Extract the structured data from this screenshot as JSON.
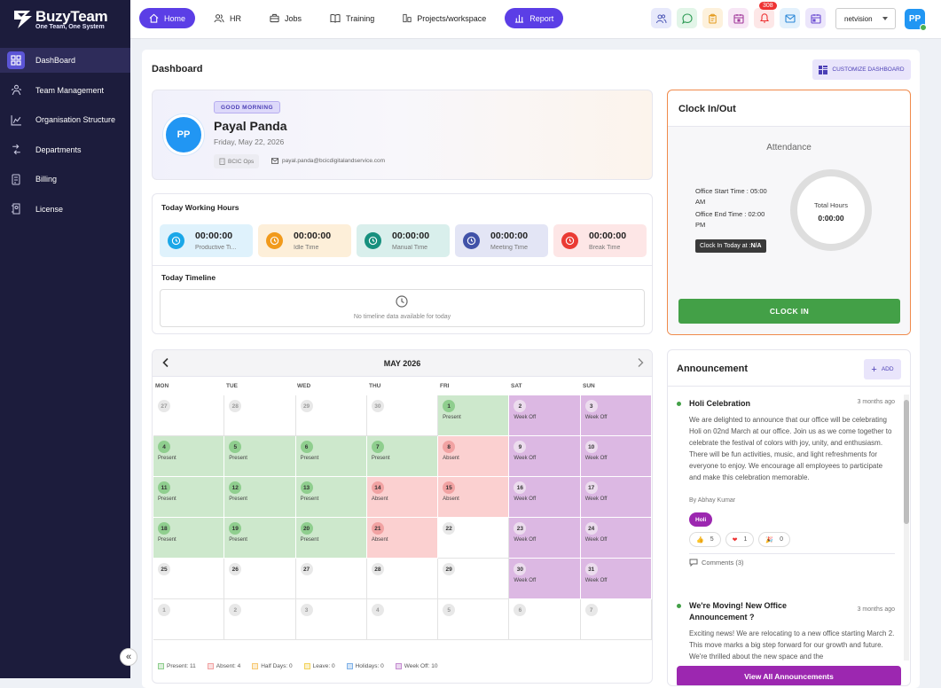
{
  "brand": {
    "name": "BuzyTeam",
    "tagline": "One Team, One System"
  },
  "sidebar": {
    "items": [
      {
        "label": "DashBoard",
        "icon": "dashboard-icon"
      },
      {
        "label": "Team Management",
        "icon": "team-icon"
      },
      {
        "label": "Organisation Structure",
        "icon": "org-chart-icon"
      },
      {
        "label": "Departments",
        "icon": "departments-icon"
      },
      {
        "label": "Billing",
        "icon": "billing-icon"
      },
      {
        "label": "License",
        "icon": "license-icon"
      }
    ],
    "collapse_glyph": "«"
  },
  "topnav": {
    "items": [
      {
        "label": "Home",
        "icon": "home-icon"
      },
      {
        "label": "HR",
        "icon": "hr-icon"
      },
      {
        "label": "Jobs",
        "icon": "jobs-icon"
      },
      {
        "label": "Training",
        "icon": "training-icon"
      },
      {
        "label": "Projects/workspace",
        "icon": "projects-icon"
      },
      {
        "label": "Report",
        "icon": "report-icon"
      }
    ],
    "notification_count": "308",
    "org_select": "netvision",
    "user_initials": "PP"
  },
  "dashboard": {
    "title": "Dashboard",
    "customize_label": "CUSTOMIZE DASHBOARD"
  },
  "profile": {
    "greeting": "GOOD MORNING",
    "name": "Payal Panda",
    "initials": "PP",
    "date": "Friday, May 22, 2026",
    "department": "BCIC Ops",
    "email": "payal.panda@bcicdigitalandservice.com"
  },
  "working_hours": {
    "title": "Today Working Hours",
    "cards": [
      {
        "value": "00:00:00",
        "label": "Productive Ti...",
        "bg": "#dff2fc",
        "icon_bg": "#1aa7e8"
      },
      {
        "value": "00:00:00",
        "label": "Idle Time",
        "bg": "#fdefd9",
        "icon_bg": "#f19a1b"
      },
      {
        "value": "00:00:00",
        "label": "Manual Time",
        "bg": "#d9efec",
        "icon_bg": "#17907e"
      },
      {
        "value": "00:00:00",
        "label": "Meeting Time",
        "bg": "#e3e5f5",
        "icon_bg": "#4152a8"
      },
      {
        "value": "00:00:00",
        "label": "Break Time",
        "bg": "#fde6e6",
        "icon_bg": "#ea3b34"
      }
    ]
  },
  "timeline": {
    "title": "Today Timeline",
    "empty_text": "No timeline data available for today"
  },
  "calendar": {
    "month": "MAY 2026",
    "days_of_week": [
      "MON",
      "TUE",
      "WED",
      "THU",
      "FRI",
      "SAT",
      "SUN"
    ],
    "weeks": [
      [
        {
          "d": "27",
          "s": "",
          "t": "faded"
        },
        {
          "d": "28",
          "s": "",
          "t": "faded"
        },
        {
          "d": "29",
          "s": "",
          "t": "faded"
        },
        {
          "d": "30",
          "s": "",
          "t": "faded"
        },
        {
          "d": "1",
          "s": "Present",
          "t": "present"
        },
        {
          "d": "2",
          "s": "Week Off",
          "t": "weekoff"
        },
        {
          "d": "3",
          "s": "Week Off",
          "t": "weekoff"
        }
      ],
      [
        {
          "d": "4",
          "s": "Present",
          "t": "present"
        },
        {
          "d": "5",
          "s": "Present",
          "t": "present"
        },
        {
          "d": "6",
          "s": "Present",
          "t": "present"
        },
        {
          "d": "7",
          "s": "Present",
          "t": "present"
        },
        {
          "d": "8",
          "s": "Absent",
          "t": "absent"
        },
        {
          "d": "9",
          "s": "Week Off",
          "t": "weekoff"
        },
        {
          "d": "10",
          "s": "Week Off",
          "t": "weekoff"
        }
      ],
      [
        {
          "d": "11",
          "s": "Present",
          "t": "present"
        },
        {
          "d": "12",
          "s": "Present",
          "t": "present"
        },
        {
          "d": "13",
          "s": "Present",
          "t": "present"
        },
        {
          "d": "14",
          "s": "Absent",
          "t": "absent"
        },
        {
          "d": "15",
          "s": "Absent",
          "t": "absent"
        },
        {
          "d": "16",
          "s": "Week Off",
          "t": "weekoff"
        },
        {
          "d": "17",
          "s": "Week Off",
          "t": "weekoff"
        }
      ],
      [
        {
          "d": "18",
          "s": "Present",
          "t": "present"
        },
        {
          "d": "19",
          "s": "Present",
          "t": "present"
        },
        {
          "d": "20",
          "s": "Present",
          "t": "present"
        },
        {
          "d": "21",
          "s": "Absent",
          "t": "absent"
        },
        {
          "d": "22",
          "s": "",
          "t": "none"
        },
        {
          "d": "23",
          "s": "Week Off",
          "t": "weekoff"
        },
        {
          "d": "24",
          "s": "Week Off",
          "t": "weekoff"
        }
      ],
      [
        {
          "d": "25",
          "s": "",
          "t": "none"
        },
        {
          "d": "26",
          "s": "",
          "t": "none"
        },
        {
          "d": "27",
          "s": "",
          "t": "none"
        },
        {
          "d": "28",
          "s": "",
          "t": "none"
        },
        {
          "d": "29",
          "s": "",
          "t": "none"
        },
        {
          "d": "30",
          "s": "Week Off",
          "t": "weekoff"
        },
        {
          "d": "31",
          "s": "Week Off",
          "t": "weekoff"
        }
      ],
      [
        {
          "d": "1",
          "s": "",
          "t": "faded"
        },
        {
          "d": "2",
          "s": "",
          "t": "faded"
        },
        {
          "d": "3",
          "s": "",
          "t": "faded"
        },
        {
          "d": "4",
          "s": "",
          "t": "faded"
        },
        {
          "d": "5",
          "s": "",
          "t": "faded"
        },
        {
          "d": "6",
          "s": "",
          "t": "faded"
        },
        {
          "d": "7",
          "s": "",
          "t": "faded"
        }
      ]
    ],
    "legend": [
      {
        "label": "Present: 11",
        "color": "#8fce8e"
      },
      {
        "label": "Absent: 4",
        "color": "#f1a2a2"
      },
      {
        "label": "Half Days: 0",
        "color": "#f7c873"
      },
      {
        "label": "Leave: 0",
        "color": "#f3d35a"
      },
      {
        "label": "Holidays: 0",
        "color": "#7fb1e8"
      },
      {
        "label": "Week Off: 10",
        "color": "#c48ad0"
      }
    ]
  },
  "clock": {
    "title": "Clock In/Out",
    "attendance_label": "Attendance",
    "office_start": "Office Start Time : 05:00 AM",
    "office_end": "Office End Time : 02:00 PM",
    "clocked_in_prefix": "Clock In Today at : ",
    "clocked_in_value": "N/A",
    "total_hours_label": "Total Hours",
    "total_hours_value": "0:00:00",
    "button": "CLOCK IN"
  },
  "announcements": {
    "title": "Announcement",
    "add_label": "ADD",
    "posts": [
      {
        "title": "Holi Celebration",
        "ago": "3 months ago",
        "body": "We are delighted to announce that our office will be celebrating Holi on 02nd March at our office. Join us as we come together to celebrate the festival of colors with joy, unity, and enthusiasm. There will be fun activities, music, and light refreshments for everyone to enjoy. We encourage all employees to participate and make this celebration memorable.",
        "author": "By Abhay Kumar",
        "tag": "Holi",
        "reactions": [
          {
            "emoji": "👍",
            "count": "5"
          },
          {
            "emoji": "❤",
            "count": "1"
          },
          {
            "emoji": "🎉",
            "count": "0"
          }
        ],
        "comments": "Comments (3)"
      },
      {
        "title": "We're Moving! New Office Announcement ?",
        "ago": "3 months ago",
        "body": "Exciting news! We are relocating to a new office starting March 2. This move marks a big step forward for our growth and future. We're thrilled about the new space and the"
      }
    ],
    "view_all": "View All Announcements"
  }
}
